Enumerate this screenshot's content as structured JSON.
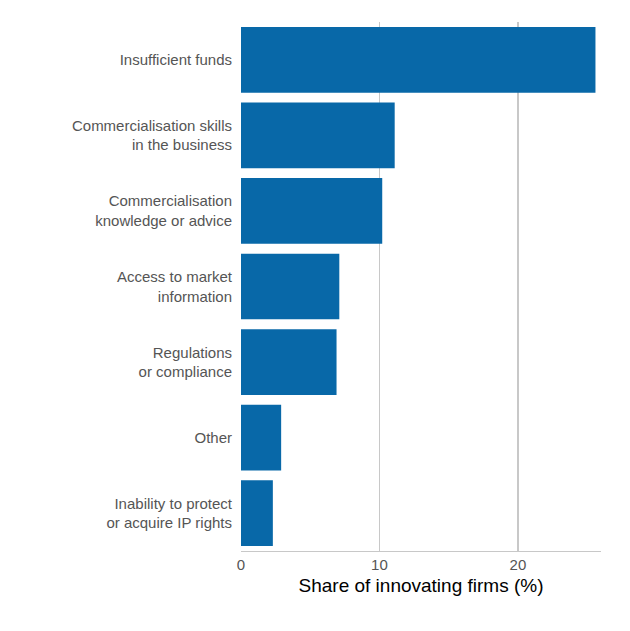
{
  "chart_data": {
    "type": "bar",
    "orientation": "horizontal",
    "x_label": "Share of innovating firms (%)",
    "categories": [
      "Insufficient funds",
      "Commercialisation skills\nin the business",
      "Commercialisation\nknowledge or advice",
      "Access to market\ninformation",
      "Regulations\nor compliance",
      "Other",
      "Inability to protect\nor acquire IP rights"
    ],
    "values": [
      25.6,
      11.1,
      10.2,
      7.1,
      6.9,
      2.9,
      2.3
    ],
    "color": "#0868a8",
    "xlim": [
      0,
      26
    ],
    "xticks": [
      0,
      10,
      20
    ],
    "grid": true
  }
}
